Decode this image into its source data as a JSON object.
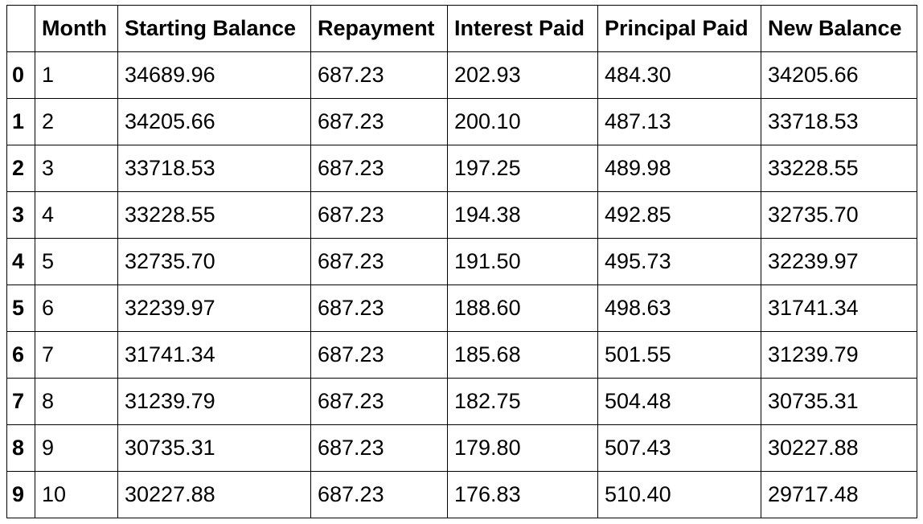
{
  "table": {
    "index_header": "",
    "columns": [
      "Month",
      "Starting Balance",
      "Repayment",
      "Interest Paid",
      "Principal Paid",
      "New Balance"
    ],
    "rows": [
      {
        "index": "0",
        "cells": [
          "1",
          "34689.96",
          "687.23",
          "202.93",
          "484.30",
          "34205.66"
        ]
      },
      {
        "index": "1",
        "cells": [
          "2",
          "34205.66",
          "687.23",
          "200.10",
          "487.13",
          "33718.53"
        ]
      },
      {
        "index": "2",
        "cells": [
          "3",
          "33718.53",
          "687.23",
          "197.25",
          "489.98",
          "33228.55"
        ]
      },
      {
        "index": "3",
        "cells": [
          "4",
          "33228.55",
          "687.23",
          "194.38",
          "492.85",
          "32735.70"
        ]
      },
      {
        "index": "4",
        "cells": [
          "5",
          "32735.70",
          "687.23",
          "191.50",
          "495.73",
          "32239.97"
        ]
      },
      {
        "index": "5",
        "cells": [
          "6",
          "32239.97",
          "687.23",
          "188.60",
          "498.63",
          "31741.34"
        ]
      },
      {
        "index": "6",
        "cells": [
          "7",
          "31741.34",
          "687.23",
          "185.68",
          "501.55",
          "31239.79"
        ]
      },
      {
        "index": "7",
        "cells": [
          "8",
          "31239.79",
          "687.23",
          "182.75",
          "504.48",
          "30735.31"
        ]
      },
      {
        "index": "8",
        "cells": [
          "9",
          "30735.31",
          "687.23",
          "179.80",
          "507.43",
          "30227.88"
        ]
      },
      {
        "index": "9",
        "cells": [
          "10",
          "30227.88",
          "687.23",
          "176.83",
          "510.40",
          "29717.48"
        ]
      }
    ]
  }
}
